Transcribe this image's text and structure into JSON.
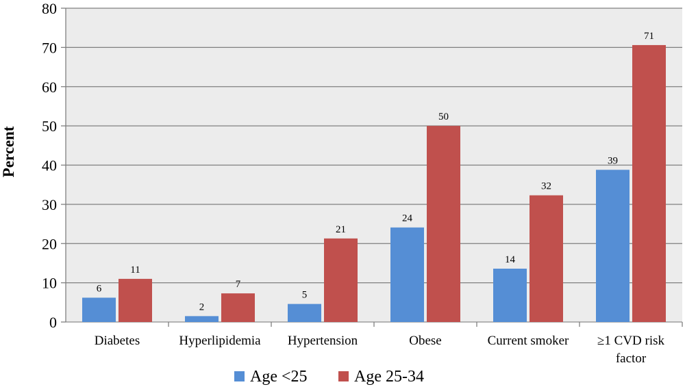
{
  "chart_data": {
    "type": "bar",
    "ylabel": "Percent",
    "ylim": [
      0,
      80
    ],
    "yticks": [
      0,
      10,
      20,
      30,
      40,
      50,
      60,
      70,
      80
    ],
    "grid": true,
    "legend_position": "bottom",
    "categories": [
      [
        "Diabetes"
      ],
      [
        "Hyperlipidemia"
      ],
      [
        "Hypertension"
      ],
      [
        "Obese"
      ],
      [
        "Current smoker"
      ],
      [
        "≥1 CVD risk",
        "factor"
      ]
    ],
    "series": [
      {
        "name": "Age <25",
        "color": "#558ED5",
        "values": [
          6.2,
          1.5,
          4.6,
          24.1,
          13.6,
          38.8
        ],
        "labels": [
          "6",
          "2",
          "5",
          "24",
          "14",
          "39"
        ]
      },
      {
        "name": "Age 25-34",
        "color": "#C0504D",
        "values": [
          11.0,
          7.3,
          21.3,
          50.0,
          32.3,
          70.6
        ],
        "labels": [
          "11",
          "7",
          "21",
          "50",
          "32",
          "71"
        ]
      }
    ]
  }
}
